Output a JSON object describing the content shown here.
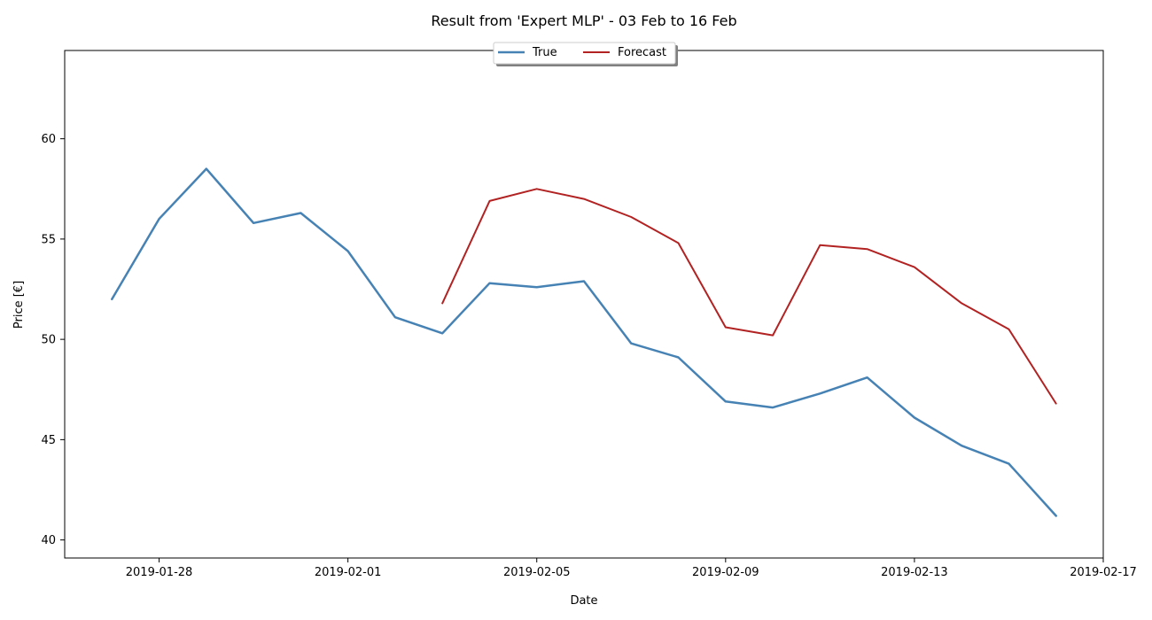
{
  "chart_data": {
    "type": "line",
    "title": "Result from 'Expert MLP' - 03 Feb to 16 Feb",
    "xlabel": "Date",
    "ylabel": "Price [€]",
    "xlim": [
      "2019-01-26",
      "2019-02-17"
    ],
    "ylim": [
      39.1,
      64.4
    ],
    "x_ticks": [
      "2019-01-28",
      "2019-02-01",
      "2019-02-05",
      "2019-02-09",
      "2019-02-13",
      "2019-02-17"
    ],
    "y_ticks": [
      40,
      45,
      50,
      55,
      60
    ],
    "grid": false,
    "legend": {
      "placement": "top-center",
      "columns": 2
    },
    "series": [
      {
        "name": "True",
        "color": "#4682b4",
        "x": [
          "2019-01-27",
          "2019-01-28",
          "2019-01-29",
          "2019-01-30",
          "2019-01-31",
          "2019-02-01",
          "2019-02-02",
          "2019-02-03",
          "2019-02-04",
          "2019-02-05",
          "2019-02-06",
          "2019-02-07",
          "2019-02-08",
          "2019-02-09",
          "2019-02-10",
          "2019-02-11",
          "2019-02-12",
          "2019-02-13",
          "2019-02-14",
          "2019-02-15",
          "2019-02-16"
        ],
        "values": [
          52.0,
          56.0,
          58.5,
          55.8,
          56.3,
          54.4,
          51.1,
          50.3,
          52.8,
          52.6,
          52.9,
          49.8,
          49.1,
          46.9,
          46.6,
          47.3,
          48.1,
          46.1,
          44.7,
          43.8,
          41.2
        ]
      },
      {
        "name": "Forecast",
        "color": "#b22222",
        "x": [
          "2019-02-03",
          "2019-02-04",
          "2019-02-05",
          "2019-02-06",
          "2019-02-07",
          "2019-02-08",
          "2019-02-09",
          "2019-02-10",
          "2019-02-11",
          "2019-02-12",
          "2019-02-13",
          "2019-02-14",
          "2019-02-15",
          "2019-02-16"
        ],
        "values": [
          51.8,
          56.9,
          57.5,
          57.0,
          56.1,
          54.8,
          50.6,
          50.2,
          54.7,
          54.5,
          53.6,
          51.8,
          50.5,
          46.8
        ]
      }
    ]
  }
}
